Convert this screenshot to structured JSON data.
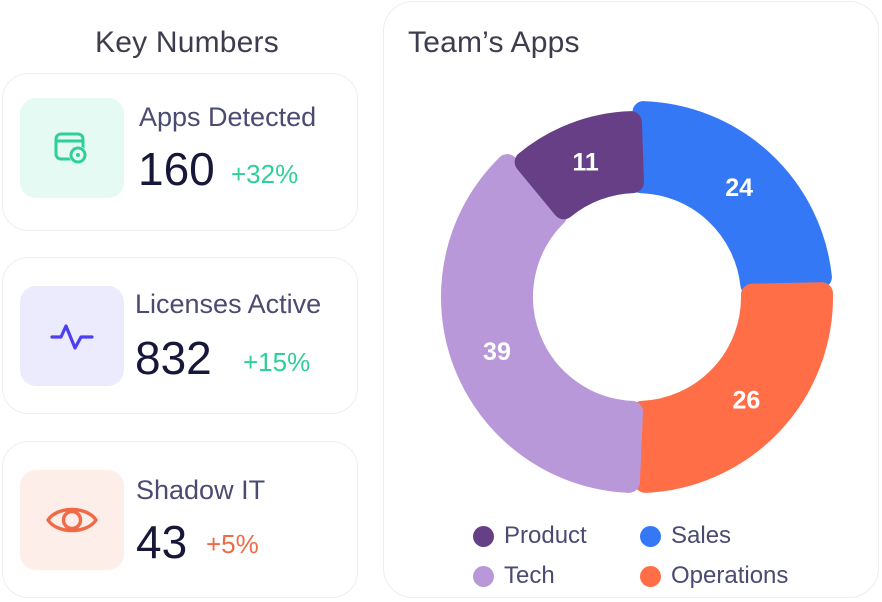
{
  "key_numbers": {
    "title": "Key Numbers",
    "cards": [
      {
        "label": "Apps Detected",
        "value": "160",
        "change": "+32%",
        "icon": "app-detect-icon",
        "icon_bg": "#e6faf4",
        "icon_color": "#2fcf9a",
        "change_color": "#2fcf9a"
      },
      {
        "label": "Licenses Active",
        "value": "832",
        "change": "+15%",
        "icon": "activity-icon",
        "icon_bg": "#ecebfd",
        "icon_color": "#4b3ff0",
        "change_color": "#2fcf9a"
      },
      {
        "label": "Shadow IT",
        "value": "43",
        "change": "+5%",
        "icon": "eye-icon",
        "icon_bg": "#fdeee9",
        "icon_color": "#f06a48",
        "change_color": "#f06a48"
      }
    ]
  },
  "teams_apps": {
    "title": "Team’s Apps",
    "legend": [
      {
        "label": "Product",
        "color": "#663f86"
      },
      {
        "label": "Sales",
        "color": "#3578f6"
      },
      {
        "label": "Tech",
        "color": "#b898d9"
      },
      {
        "label": "Operations",
        "color": "#ff6e46"
      }
    ]
  },
  "chart_data": {
    "type": "pie",
    "title": "Team’s Apps",
    "categories": [
      "Product",
      "Sales",
      "Operations",
      "Tech"
    ],
    "values": [
      11,
      24,
      26,
      39
    ],
    "colors": [
      "#663f86",
      "#3578f6",
      "#ff6e46",
      "#b898d9"
    ],
    "labels": [
      "11",
      "24",
      "26",
      "39"
    ],
    "legend_position": "bottom"
  }
}
